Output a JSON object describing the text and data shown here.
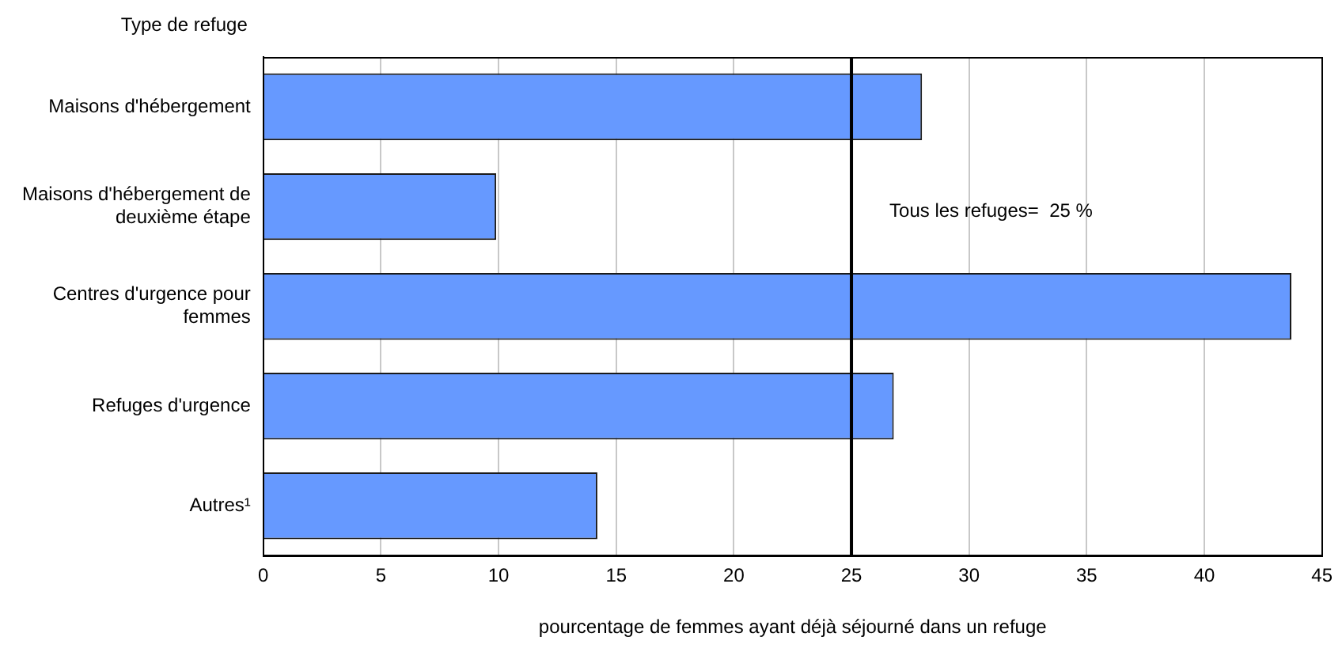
{
  "chart_data": {
    "type": "bar",
    "orientation": "horizontal",
    "ylabel": "Type de refuge",
    "xlabel": "pourcentage de femmes ayant déjà séjourné dans un refuge",
    "categories": [
      "Maisons d'hébergement",
      "Maisons d'hébergement de deuxième étape",
      "Centres d'urgence pour femmes",
      "Refuges d'urgence",
      "Autres¹"
    ],
    "values": [
      28.0,
      9.9,
      43.7,
      26.8,
      14.2
    ],
    "color": "#6699ff",
    "xlim": [
      0,
      45
    ],
    "xticks": [
      0,
      5,
      10,
      15,
      20,
      25,
      30,
      35,
      40,
      45
    ],
    "grid": "x",
    "ref_lines": [
      {
        "axis": "x",
        "value": 25,
        "label": "Tous les refuges=  25 %",
        "color": "#000000"
      }
    ]
  }
}
